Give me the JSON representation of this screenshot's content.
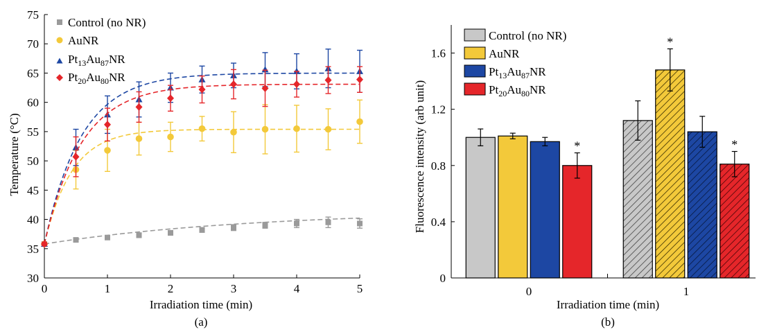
{
  "colors": {
    "control": "#9a9a9a",
    "control_bar": "#c8c8c8",
    "aunr": "#f3c93a",
    "pt13": "#1d47a3",
    "pt20": "#e5262a",
    "axis": "#000000"
  },
  "chart_data": [
    {
      "type": "scatter",
      "panel_label": "(a)",
      "xlabel": "Irradiation time (min)",
      "ylabel": "Temperature (°C)",
      "xlim": [
        0,
        5
      ],
      "ylim": [
        30,
        75
      ],
      "xticks": [
        "0",
        "1",
        "2",
        "3",
        "4",
        "5"
      ],
      "yticks": [
        "30",
        "35",
        "40",
        "45",
        "50",
        "55",
        "60",
        "65",
        "70",
        "75"
      ],
      "legend_position": "top-left",
      "x": [
        0,
        0.5,
        1,
        1.5,
        2,
        2.5,
        3,
        3.5,
        4,
        4.5,
        5
      ],
      "series": [
        {
          "key": "control",
          "name": "Control (no NR)",
          "marker": "square",
          "values": [
            35.8,
            36.5,
            36.9,
            37.3,
            37.7,
            38.2,
            38.6,
            39.0,
            39.3,
            39.5,
            39.3
          ],
          "errors": [
            0.3,
            0.3,
            0.3,
            0.4,
            0.4,
            0.4,
            0.5,
            0.5,
            0.7,
            0.9,
            0.8
          ],
          "fit_plateau": 41.5,
          "fit_rate": 0.3
        },
        {
          "key": "aunr",
          "name": "AuNR",
          "marker": "circle",
          "values": [
            35.8,
            48.5,
            51.8,
            53.8,
            54.1,
            55.5,
            54.9,
            55.4,
            55.5,
            55.4,
            56.7
          ],
          "errors": [
            0.3,
            3.3,
            3.6,
            2.8,
            2.5,
            2.1,
            3.5,
            4.2,
            4.0,
            3.5,
            3.7
          ],
          "fit_plateau": 55.4,
          "fit_rate": 2.3
        },
        {
          "key": "pt13",
          "name": "Pt13Au87NR",
          "name_parts": {
            "a": "Pt",
            "b": "13",
            "c": "Au",
            "d": "87",
            "e": "NR"
          },
          "marker": "triangle",
          "values": [
            35.8,
            52.3,
            57.9,
            60.5,
            62.5,
            63.9,
            64.6,
            65.6,
            65.3,
            65.8,
            65.3
          ],
          "errors": [
            0.3,
            3.1,
            3.2,
            3.0,
            2.5,
            2.3,
            2.1,
            2.9,
            3.0,
            3.3,
            3.6
          ],
          "fit_plateau": 65.0,
          "fit_rate": 1.7
        },
        {
          "key": "pt20",
          "name": "Pt20Au80NR",
          "name_parts": {
            "a": "Pt",
            "b": "20",
            "c": "Au",
            "d": "80",
            "e": "NR"
          },
          "marker": "diamond",
          "values": [
            35.8,
            50.7,
            56.2,
            59.2,
            60.7,
            62.2,
            63.1,
            62.4,
            63.1,
            63.8,
            63.9
          ],
          "errors": [
            0.3,
            3.4,
            2.8,
            2.6,
            2.2,
            2.3,
            2.5,
            3.1,
            2.2,
            2.3,
            2.2
          ],
          "fit_plateau": 63.1,
          "fit_rate": 1.7
        }
      ]
    },
    {
      "type": "bar",
      "panel_label": "(b)",
      "xlabel": "Irradiation time (min)",
      "ylabel": "Fluorescence intensity (arb unit)",
      "categories": [
        "0",
        "1"
      ],
      "ylim": [
        0,
        1.8
      ],
      "yticks": [
        "0",
        "0.4",
        "0.8",
        "1.2",
        "1.6"
      ],
      "legend_position": "top-left",
      "series": [
        {
          "key": "control",
          "name": "Control (no NR)",
          "values": [
            1.0,
            1.12
          ],
          "errors": [
            0.06,
            0.14
          ],
          "significant": [
            false,
            false
          ]
        },
        {
          "key": "aunr",
          "name": "AuNR",
          "name_parts": {
            "a": "AuNR",
            "b": "",
            "c": "",
            "d": "",
            "e": ""
          },
          "values": [
            1.01,
            1.48
          ],
          "errors": [
            0.02,
            0.15
          ],
          "significant": [
            false,
            true
          ]
        },
        {
          "key": "pt13",
          "name": "Pt13Au87NR",
          "name_parts": {
            "a": "Pt",
            "b": "13",
            "c": "Au",
            "d": "87",
            "e": "NR"
          },
          "values": [
            0.97,
            1.04
          ],
          "errors": [
            0.03,
            0.11
          ],
          "significant": [
            false,
            false
          ]
        },
        {
          "key": "pt20",
          "name": "Pt20Au80NR",
          "name_parts": {
            "a": "Pt",
            "b": "20",
            "c": "Au",
            "d": "80",
            "e": "NR"
          },
          "values": [
            0.8,
            0.81
          ],
          "errors": [
            0.09,
            0.09
          ],
          "significant": [
            true,
            true
          ]
        }
      ],
      "significance_mark": "*",
      "hatched_category": "1"
    }
  ]
}
